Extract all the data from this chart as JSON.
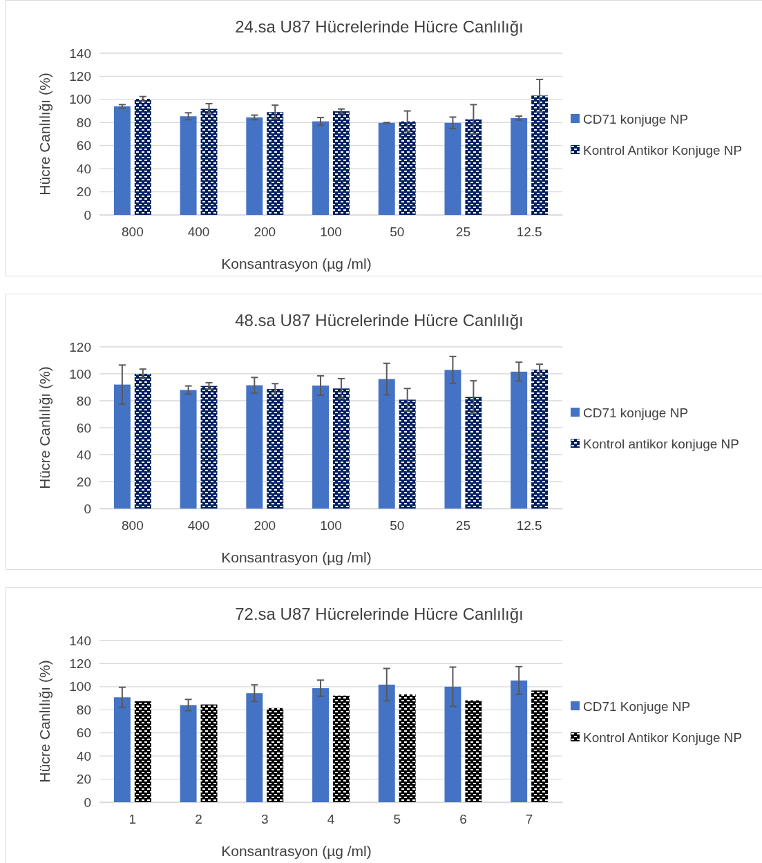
{
  "chart_data": [
    {
      "type": "bar",
      "title": "24.sa U87 Hücrelerinde Hücre Canlılığı",
      "xlabel": "Konsantrasyon (µg /ml)",
      "ylabel": "Hücre Canlılığı (%)",
      "categories": [
        "800",
        "400",
        "200",
        "100",
        "50",
        "25",
        "12.5"
      ],
      "ylim": [
        0,
        140
      ],
      "yticks": [
        0,
        20,
        40,
        60,
        80,
        100,
        120,
        140
      ],
      "grid": "y",
      "legend": "right",
      "series": [
        {
          "name": "CD71 konjuge NP",
          "color": "#4472c4",
          "values": [
            94,
            85.4,
            84.4,
            81,
            79.7,
            79.7,
            83.8
          ],
          "errors": [
            1.5,
            3,
            2,
            3.3,
            0.3,
            5,
            1.7
          ]
        },
        {
          "name": "Kontrol Antikor Konjuge NP",
          "color": "#002060",
          "values": [
            100.5,
            91.8,
            89,
            89.7,
            81,
            82.8,
            103.3
          ],
          "errors": [
            2,
            4.5,
            6,
            2,
            9,
            12.7,
            14
          ]
        }
      ]
    },
    {
      "type": "bar",
      "title": "48.sa U87 Hücrelerinde Hücre Canlılığı",
      "xlabel": "Konsantrasyon (µg /ml)",
      "ylabel": "Hücre Canlılığı (%)",
      "categories": [
        "800",
        "400",
        "200",
        "100",
        "50",
        "25",
        "12.5"
      ],
      "ylim": [
        0,
        120
      ],
      "yticks": [
        0,
        20,
        40,
        60,
        80,
        100,
        120
      ],
      "grid": "y",
      "legend": "right",
      "series": [
        {
          "name": "CD71 konjuge NP",
          "color": "#4472c4",
          "values": [
            92,
            88,
            91.5,
            91.3,
            96.1,
            102.9,
            101.6
          ],
          "errors": [
            14.5,
            3,
            5.8,
            7.2,
            11.7,
            10,
            7
          ]
        },
        {
          "name": "Kontrol antikor konjuge NP",
          "color": "#002060",
          "values": [
            100,
            91,
            88.7,
            89.1,
            80.8,
            82.8,
            103.1
          ],
          "errors": [
            3.5,
            2.4,
            4,
            7.3,
            8.3,
            12,
            4
          ]
        }
      ]
    },
    {
      "type": "bar",
      "title": "72.sa U87 Hücrelerinde Hücre Canlılığı",
      "xlabel": "Konsantrasyon (µg /ml)",
      "ylabel": "Hücre Canlılığı (%)",
      "categories": [
        "1",
        "2",
        "3",
        "4",
        "5",
        "6",
        "7"
      ],
      "ylim": [
        0,
        140
      ],
      "yticks": [
        0,
        20,
        40,
        60,
        80,
        100,
        120,
        140
      ],
      "grid": "y",
      "legend": "right",
      "series": [
        {
          "name": "CD71 Konjuge NP",
          "color": "#4472c4",
          "values": [
            90.8,
            84.1,
            94.4,
            98.7,
            101.8,
            100,
            105.4
          ],
          "errors": [
            8.7,
            4.9,
            7.2,
            7,
            14,
            17,
            12
          ]
        },
        {
          "name": "Kontrol Antikor Konjuge NP",
          "color": "#000000",
          "values": [
            87.4,
            84.6,
            81.5,
            92.3,
            93.3,
            88.2,
            96.7
          ]
        }
      ]
    }
  ]
}
